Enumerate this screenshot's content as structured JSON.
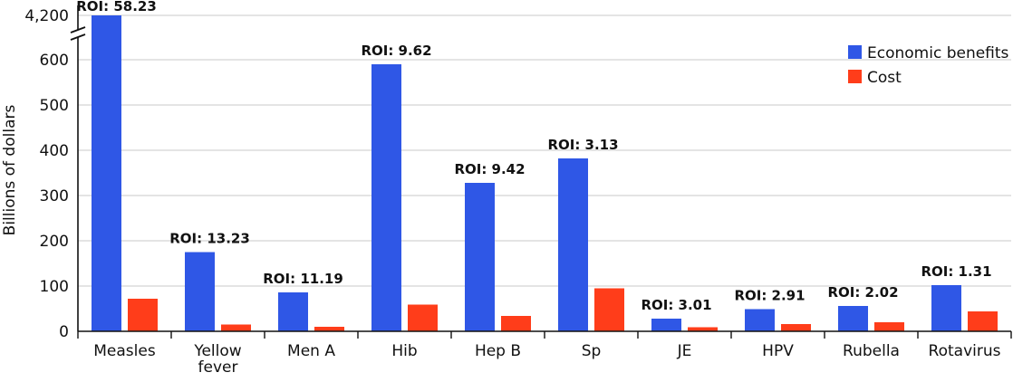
{
  "chart_data": {
    "type": "bar",
    "title": "",
    "xlabel": "",
    "ylabel": "Billions of dollars",
    "axis_break": {
      "below": 600,
      "above": 4200
    },
    "y_ticks": [
      "0",
      "100",
      "200",
      "300",
      "400",
      "500",
      "600",
      "4,200"
    ],
    "categories": [
      "Measles",
      "Yellow fever",
      "Men A",
      "Hib",
      "Hep B",
      "Sp",
      "JE",
      "HPV",
      "Rubella",
      "Rotavirus"
    ],
    "category_labels": [
      [
        "Measles"
      ],
      [
        "Yellow",
        "fever"
      ],
      [
        "Men A"
      ],
      [
        "Hib"
      ],
      [
        "Hep B"
      ],
      [
        "Sp"
      ],
      [
        "JE"
      ],
      [
        "HPV"
      ],
      [
        "Rubella"
      ],
      [
        "Rotavirus"
      ]
    ],
    "series": [
      {
        "name": "Economic benefits",
        "color": "#2f57e6",
        "values": [
          4200,
          175,
          86,
          590,
          328,
          382,
          28,
          49,
          56,
          102
        ]
      },
      {
        "name": "Cost",
        "color": "#ff3d1a",
        "values": [
          72,
          15,
          10,
          59,
          34,
          95,
          9,
          16,
          20,
          44
        ]
      }
    ],
    "roi_labels": [
      "ROI: 58.23",
      "ROI: 13.23",
      "ROI: 11.19",
      "ROI: 9.62",
      "ROI: 9.42",
      "ROI: 3.13",
      "ROI: 3.01",
      "ROI: 2.91",
      "ROI: 2.02",
      "ROI: 1.31"
    ],
    "legend_position": "top-right",
    "grid": true
  }
}
